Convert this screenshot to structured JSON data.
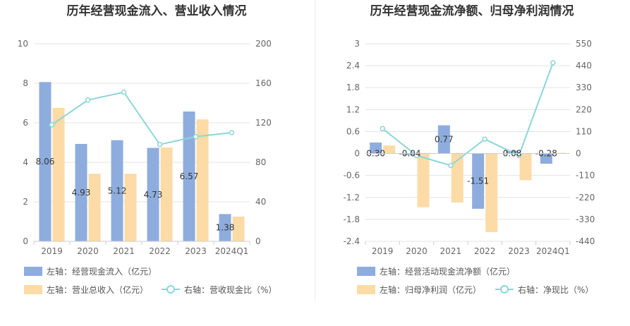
{
  "chart_data": [
    {
      "type": "bar+line",
      "title": "历年经营现金流入、营业收入情况",
      "categories": [
        "2019",
        "2020",
        "2021",
        "2022",
        "2023",
        "2024Q1"
      ],
      "left_axis": {
        "min": 0,
        "max": 10,
        "ticks": [
          "0",
          "2",
          "4",
          "6",
          "8",
          "10"
        ]
      },
      "right_axis": {
        "min": 0,
        "max": 200,
        "ticks": [
          "0",
          "40",
          "80",
          "120",
          "160",
          "200"
        ]
      },
      "grid": true,
      "series": [
        {
          "name": "左轴：经营现金流入（亿元）",
          "type": "bar",
          "axis": "left",
          "color": "#8eadde",
          "values": [
            8.06,
            4.93,
            5.12,
            4.73,
            6.57,
            1.38
          ],
          "labels": [
            "8.06",
            "4.93",
            "5.12",
            "4.73",
            "6.57",
            "1.38"
          ]
        },
        {
          "name": "左轴：营业总收入（亿元）",
          "type": "bar",
          "axis": "left",
          "color": "#fddba6",
          "values": [
            6.75,
            3.42,
            3.42,
            4.75,
            6.17,
            1.25
          ]
        },
        {
          "name": "右轴：营收现金比（%）",
          "type": "line",
          "axis": "right",
          "color": "#8cd6d8",
          "values": [
            118,
            143,
            151,
            98,
            106,
            110
          ]
        }
      ]
    },
    {
      "type": "bar+line",
      "title": "历年经营现金流净额、归母净利润情况",
      "categories": [
        "2019",
        "2020",
        "2021",
        "2022",
        "2023",
        "2024Q1"
      ],
      "left_axis": {
        "min": -2.4,
        "max": 3,
        "ticks": [
          "-2.4",
          "-1.8",
          "-1.2",
          "-0.6",
          "0",
          "0.6",
          "1.2",
          "1.8",
          "2.4",
          "3"
        ]
      },
      "right_axis": {
        "min": -440,
        "max": 550,
        "ticks": [
          "-440",
          "-330",
          "-220",
          "-110",
          "0",
          "110",
          "220",
          "330",
          "440",
          "550"
        ]
      },
      "grid": true,
      "series": [
        {
          "name": "左轴：经营活动现金流净额（亿元）",
          "type": "bar",
          "axis": "left",
          "color": "#8eadde",
          "values": [
            0.3,
            -0.04,
            0.77,
            -1.51,
            0.08,
            -0.28
          ],
          "labels": [
            "0.30",
            "-0.04",
            "0.77",
            "-1.51",
            "0.08",
            "-0.28"
          ]
        },
        {
          "name": "左轴：归母净利润（亿元）",
          "type": "bar",
          "axis": "left",
          "color": "#fddba6",
          "values": [
            0.22,
            -1.47,
            -1.34,
            -2.15,
            -0.73,
            0.02
          ]
        },
        {
          "name": "右轴：净现比（%）",
          "type": "line",
          "axis": "right",
          "color": "#8cd6d8",
          "values": [
            125,
            -10,
            -60,
            72,
            -10,
            455
          ]
        }
      ]
    }
  ]
}
